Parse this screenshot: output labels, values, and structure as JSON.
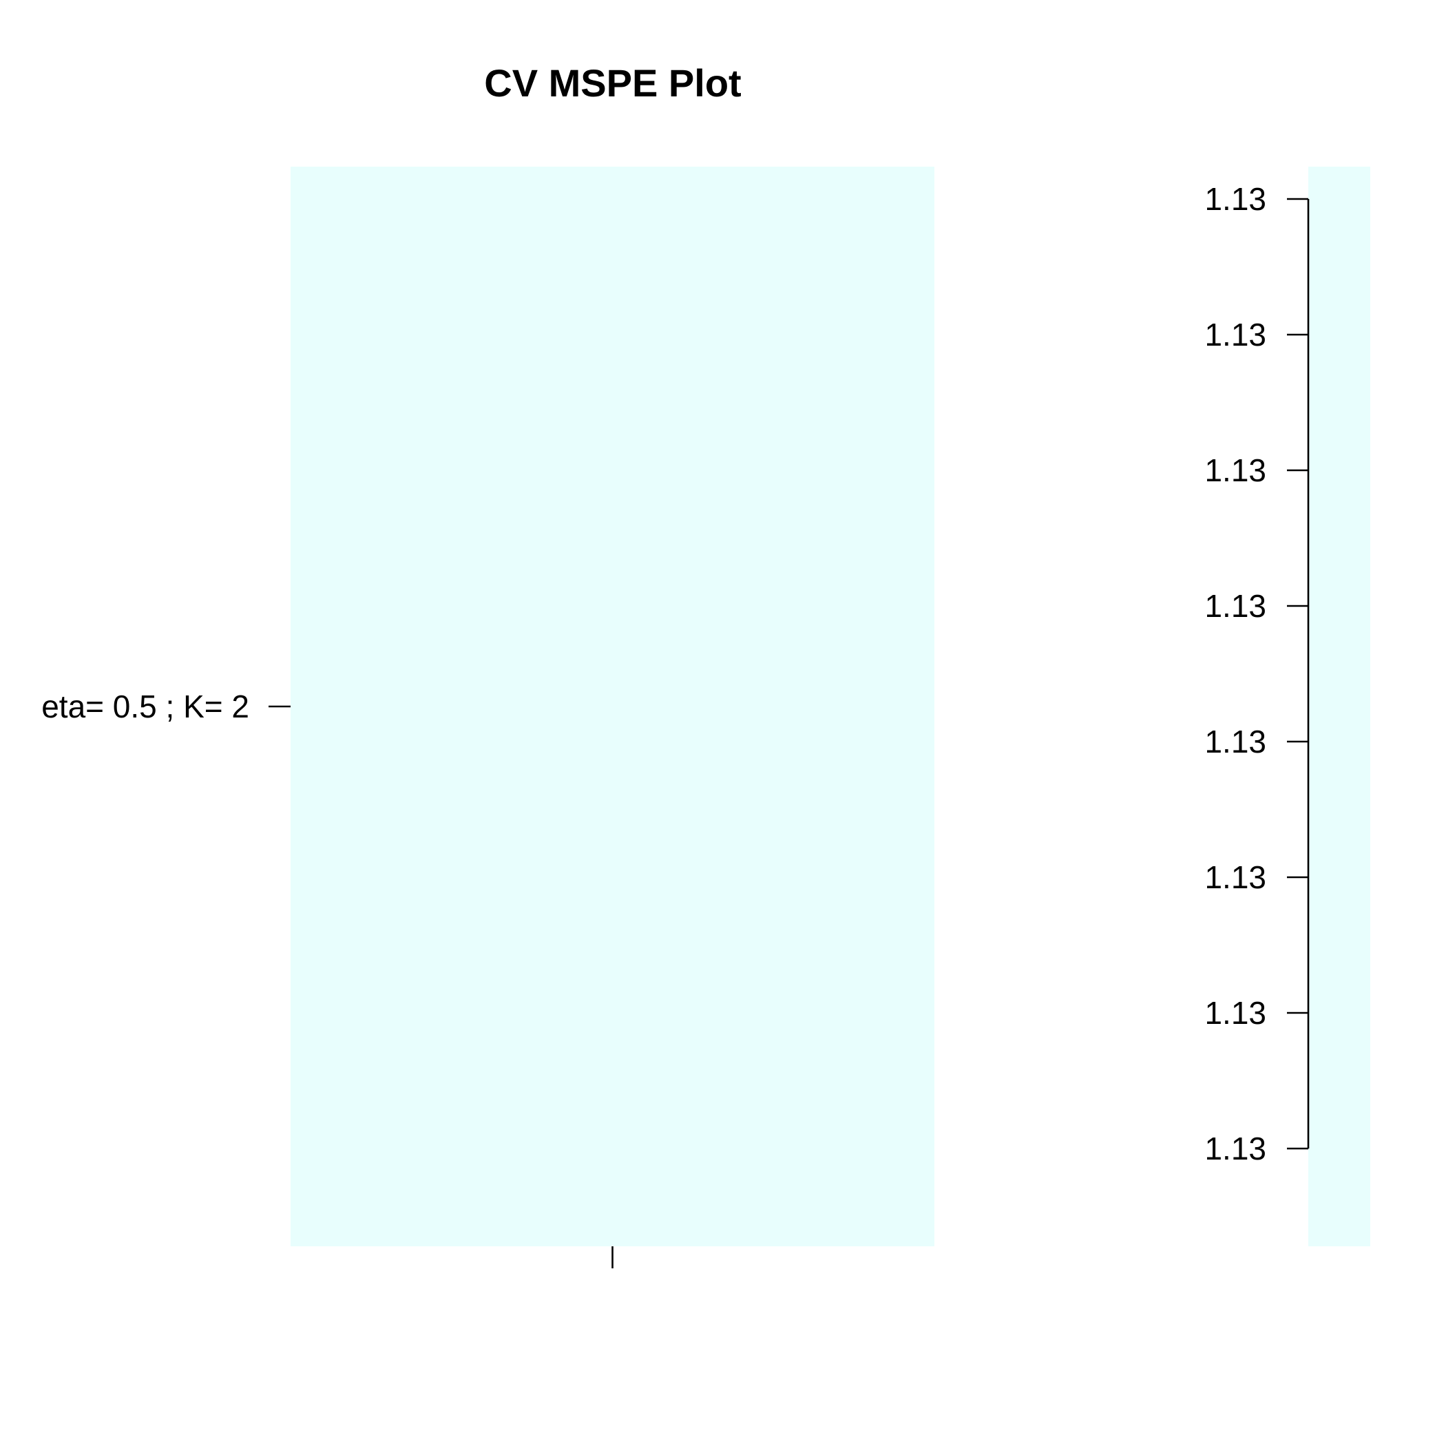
{
  "chart_data": {
    "type": "heatmap",
    "title": "CV MSPE Plot",
    "xlabel": "",
    "ylabel": "",
    "x_categories": [
      ""
    ],
    "y_categories": [
      "eta= 0.5 ; K= 2"
    ],
    "values": [
      [
        1.13
      ]
    ],
    "cell_color": "#e8fefd",
    "colorbar": {
      "color": "#e8fefd",
      "tick_labels": [
        "1.13",
        "1.13",
        "1.13",
        "1.13",
        "1.13",
        "1.13",
        "1.13",
        "1.13"
      ]
    },
    "grid": false,
    "legend": "right (colorbar)"
  }
}
